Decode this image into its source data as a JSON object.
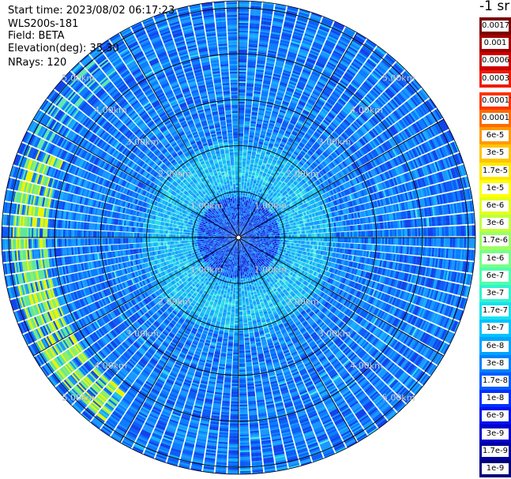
{
  "header": {
    "start_time": "Start time: 2023/08/02 06:17:23",
    "instrument": "WLS200s-181",
    "field": "Field: BETA",
    "elevation": "Elevation(deg): 35.30",
    "nrays": "NRays: 120"
  },
  "unit_label": "-1 sr",
  "chart_data": {
    "type": "heatmap",
    "projection": "polar (PPI scan)",
    "field": "BETA",
    "elevation_deg": 35.3,
    "n_rays": 120,
    "range_ring_labels": [
      "1.00km",
      "2.00km",
      "3.00km",
      "4.00km",
      "5.00km"
    ],
    "range_rings_km": [
      1,
      2,
      3,
      4,
      5
    ],
    "max_range_km": 5.15,
    "spoke_interval_deg": 30,
    "colorbar": {
      "ticks": [
        "0.0017",
        "0.001",
        "0.0006",
        "0.0003",
        "0.00017",
        "0.0001",
        "6e-5",
        "3e-5",
        "1.7e-5",
        "1e-5",
        "6e-6",
        "3e-6",
        "1.7e-6",
        "1e-6",
        "6e-7",
        "3e-7",
        "1.7e-7",
        "1e-7",
        "6e-8",
        "3e-8",
        "1.7e-8",
        "1e-8",
        "6e-9",
        "3e-9",
        "1.7e-9",
        "1e-9"
      ],
      "colors": [
        "#7a0000",
        "#a30000",
        "#cc0000",
        "#ee1a00",
        "#ff3300",
        "#ff6a00",
        "#ff9a00",
        "#ffc400",
        "#ffe800",
        "#ffff00",
        "#e4ff1c",
        "#c0ff40",
        "#9cff64",
        "#78ff88",
        "#50ffaa",
        "#30f4cf",
        "#18e0ee",
        "#00c4ff",
        "#00a4ff",
        "#0080ff",
        "#005cff",
        "#0030ff",
        "#0010ee",
        "#0000cc",
        "#00009d",
        "#000078"
      ],
      "split_after_index": 3
    },
    "typical_values": "dominant 6e-9 to 3e-7 (blue to cyan); green-yellow 1e-6 to 1e-5 band near 4.2-4.9 km toward west-southwest; light cyan 1.7e-7 to 6e-7 ring at 1-2 km"
  }
}
